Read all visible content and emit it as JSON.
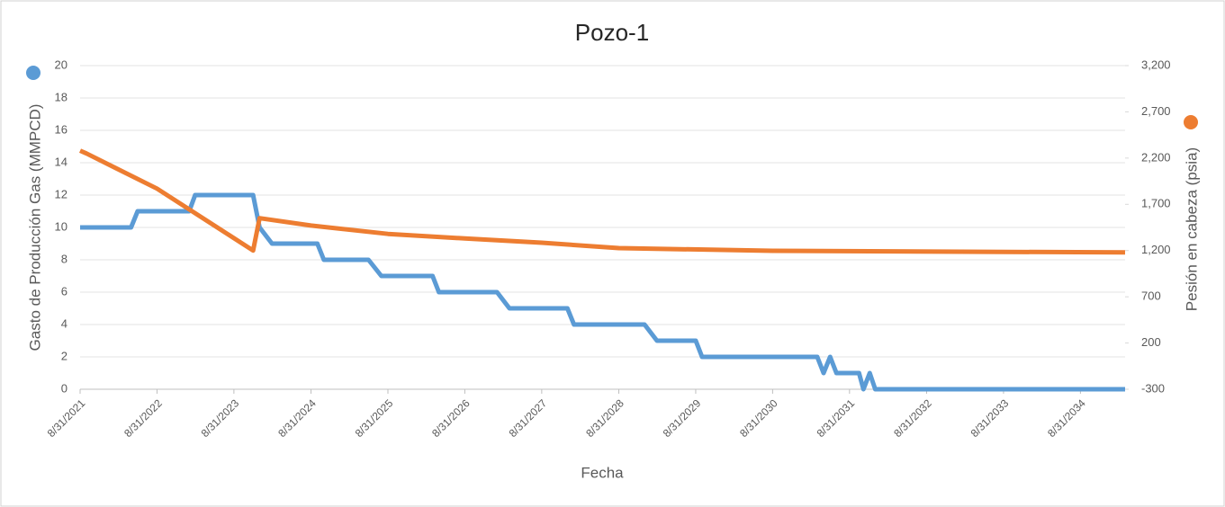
{
  "chart_data": {
    "type": "line",
    "title": "Pozo-1",
    "x_label": "Fecha",
    "y_label": "Gasto de Producción Gas (MMPCD)",
    "y2_label": "Pesión en cabeza (psia)",
    "xlim": [
      "8/31/2021",
      "3/31/2035"
    ],
    "xticks": [
      "8/31/2021",
      "8/31/2022",
      "8/31/2023",
      "8/31/2024",
      "8/31/2025",
      "8/31/2026",
      "8/31/2027",
      "8/31/2028",
      "8/31/2029",
      "8/31/2030",
      "8/31/2031",
      "8/31/2032",
      "8/31/2033",
      "8/31/2034"
    ],
    "ylim": [
      0,
      20
    ],
    "yticks": [
      0,
      2,
      4,
      6,
      8,
      10,
      12,
      14,
      16,
      18,
      20
    ],
    "y2lim": [
      -300,
      3200
    ],
    "y2ticks": [
      -300,
      200,
      700,
      {
        "value": 1200,
        "label": "1,200"
      },
      {
        "value": 1700,
        "label": "1,700"
      },
      {
        "value": 2200,
        "label": "2,200"
      },
      {
        "value": 2700,
        "label": "2,700"
      },
      {
        "value": 3200,
        "label": "3,200"
      }
    ],
    "grid": true,
    "series": [
      {
        "color": "#5b9bd5",
        "x": [
          "8/31/2021",
          "4/30/2022",
          "5/31/2022",
          "1/31/2023",
          "2/28/2023",
          "11/30/2023",
          "12/31/2023",
          "2/28/2024",
          "9/30/2024",
          "10/31/2024",
          "5/31/2025",
          "7/31/2025",
          "3/31/2026",
          "4/30/2026",
          "1/31/2027",
          "3/31/2027",
          "12/31/2027",
          "1/31/2028",
          "12/31/2028",
          "2/28/2029",
          "8/31/2029",
          "9/30/2029",
          "3/31/2031",
          "4/30/2031",
          "5/31/2031",
          "6/30/2031",
          "10/15/2031",
          "11/5/2031",
          "12/5/2031",
          "12/31/2031",
          "3/31/2035"
        ],
        "values": [
          10,
          10,
          11,
          11,
          12,
          12,
          10,
          9,
          9,
          8,
          8,
          7,
          7,
          6,
          6,
          5,
          5,
          4,
          4,
          3,
          3,
          2,
          2,
          1,
          2,
          1,
          1,
          0,
          1,
          0,
          0
        ]
      },
      {
        "color": "#ed7d31",
        "axis": "y2",
        "x": [
          "8/31/2021",
          "9/30/2021",
          "8/31/2022",
          "11/30/2023",
          "12/31/2023",
          "8/31/2024",
          "8/31/2025",
          "8/31/2026",
          "8/31/2027",
          "8/31/2028",
          "8/31/2030",
          "3/31/2035"
        ],
        "values": [
          2280,
          2250,
          1870,
          1200,
          1550,
          1470,
          1380,
          1330,
          1285,
          1226,
          1197,
          1180
        ]
      }
    ]
  }
}
